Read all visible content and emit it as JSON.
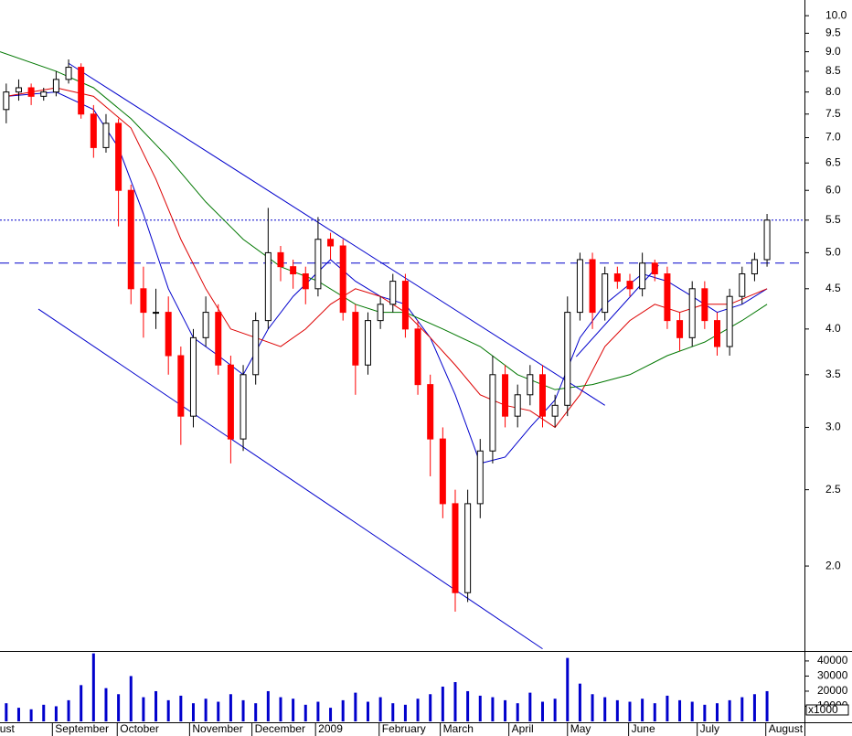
{
  "chart_data": {
    "type": "candlestick",
    "log_scale": true,
    "x": [
      0,
      1,
      2,
      3,
      4,
      5,
      6,
      7,
      8,
      9,
      10,
      11,
      12,
      13,
      14,
      15,
      16,
      17,
      18,
      19,
      20,
      21,
      22,
      23,
      24,
      25,
      26,
      27,
      28,
      29,
      30,
      31,
      32,
      33,
      34,
      35,
      36,
      37,
      38,
      39,
      40,
      41,
      42,
      43,
      44,
      45,
      46,
      47,
      48,
      49,
      50,
      51,
      52,
      53,
      54,
      55,
      56,
      57,
      58,
      59,
      60,
      61
    ],
    "open": [
      7.6,
      8.0,
      8.1,
      7.9,
      8.0,
      8.3,
      8.6,
      7.5,
      6.8,
      7.3,
      6.0,
      4.5,
      4.2,
      4.2,
      3.7,
      3.1,
      3.9,
      4.2,
      3.6,
      2.9,
      3.5,
      4.1,
      5.0,
      4.8,
      4.7,
      4.5,
      5.2,
      5.1,
      4.2,
      3.6,
      4.1,
      4.3,
      4.6,
      4.0,
      3.4,
      2.9,
      2.4,
      1.85,
      2.4,
      2.8,
      3.5,
      3.1,
      3.3,
      3.5,
      3.1,
      3.2,
      4.2,
      4.9,
      4.2,
      4.7,
      4.6,
      4.5,
      4.85,
      4.7,
      4.1,
      3.9,
      4.5,
      4.1,
      3.8,
      4.4,
      4.7,
      4.9
    ],
    "high": [
      8.2,
      8.3,
      8.2,
      8.1,
      8.5,
      8.8,
      8.7,
      7.7,
      7.5,
      7.4,
      6.1,
      4.8,
      4.5,
      4.4,
      3.8,
      4.0,
      4.4,
      4.3,
      3.7,
      3.6,
      4.2,
      5.7,
      5.1,
      4.9,
      4.8,
      5.55,
      5.3,
      5.2,
      4.3,
      4.2,
      4.4,
      4.7,
      4.7,
      4.1,
      3.5,
      3.0,
      2.5,
      2.5,
      2.9,
      3.7,
      3.6,
      3.4,
      3.6,
      3.6,
      3.3,
      4.4,
      5.0,
      5.0,
      4.8,
      4.8,
      4.7,
      5.0,
      4.9,
      4.8,
      4.2,
      4.6,
      4.6,
      4.2,
      4.5,
      4.8,
      5.0,
      5.6
    ],
    "low": [
      7.3,
      7.8,
      7.7,
      7.8,
      7.9,
      8.2,
      7.4,
      6.6,
      6.7,
      5.4,
      4.3,
      3.9,
      4.0,
      3.5,
      2.85,
      3.0,
      3.8,
      3.5,
      2.7,
      2.8,
      3.4,
      4.0,
      4.6,
      4.5,
      4.3,
      4.4,
      4.9,
      4.1,
      3.3,
      3.5,
      4.0,
      4.2,
      3.9,
      3.3,
      2.6,
      2.3,
      1.75,
      1.8,
      2.3,
      2.7,
      3.0,
      3.0,
      3.2,
      3.0,
      3.0,
      3.1,
      4.1,
      4.0,
      4.1,
      4.5,
      4.4,
      4.4,
      4.6,
      4.0,
      3.75,
      3.8,
      4.0,
      3.7,
      3.7,
      4.3,
      4.6,
      4.8
    ],
    "close": [
      8.0,
      8.1,
      7.9,
      8.0,
      8.3,
      8.6,
      7.5,
      6.8,
      7.3,
      6.0,
      4.5,
      4.2,
      4.2,
      3.7,
      3.1,
      3.9,
      4.2,
      3.6,
      2.9,
      3.5,
      4.1,
      5.0,
      4.8,
      4.7,
      4.5,
      5.2,
      5.1,
      4.2,
      3.6,
      4.1,
      4.3,
      4.6,
      4.0,
      3.4,
      2.9,
      2.4,
      1.85,
      2.4,
      2.8,
      3.5,
      3.1,
      3.3,
      3.5,
      3.1,
      3.2,
      4.2,
      4.9,
      4.2,
      4.7,
      4.6,
      4.5,
      4.85,
      4.7,
      4.1,
      3.9,
      4.5,
      4.1,
      3.8,
      4.4,
      4.7,
      4.9,
      5.5
    ],
    "volume": [
      12000,
      9000,
      8000,
      11000,
      10000,
      14000,
      24000,
      45000,
      22000,
      18000,
      30000,
      16000,
      20000,
      14000,
      17000,
      12000,
      15000,
      13000,
      18000,
      14000,
      12000,
      20000,
      16000,
      15000,
      11000,
      13000,
      9000,
      14000,
      19000,
      13000,
      16000,
      12000,
      11000,
      15000,
      18000,
      23000,
      26000,
      20000,
      17000,
      16000,
      14000,
      12000,
      19000,
      13000,
      15000,
      42000,
      25000,
      18000,
      16000,
      14000,
      13000,
      15000,
      12000,
      17000,
      14000,
      13000,
      11000,
      12000,
      14000,
      16000,
      18000,
      20000
    ],
    "up_color": "#ffffff",
    "down_color": "#ff0000",
    "volume_color": "#0000cc",
    "averages": [
      {
        "color": "#0000cc",
        "x": [
          0,
          4,
          7,
          9,
          11,
          13,
          15,
          17,
          19,
          21,
          23,
          26,
          28,
          30,
          32,
          34,
          36,
          38,
          40,
          42,
          44,
          46,
          48,
          51,
          53,
          55,
          57,
          59,
          61
        ],
        "values": [
          7.9,
          8.0,
          7.6,
          6.8,
          5.6,
          4.5,
          3.9,
          3.7,
          3.5,
          4.0,
          4.4,
          4.9,
          4.6,
          4.4,
          4.3,
          3.9,
          3.3,
          2.7,
          2.75,
          3.0,
          3.25,
          3.9,
          4.3,
          4.7,
          4.6,
          4.4,
          4.2,
          4.3,
          4.5
        ]
      },
      {
        "color": "#dd0000",
        "x": [
          0,
          4,
          7,
          10,
          12,
          14,
          16,
          18,
          20,
          22,
          24,
          26,
          28,
          30,
          32,
          34,
          36,
          38,
          40,
          42,
          44,
          46,
          48,
          50,
          52,
          54,
          56,
          58,
          61
        ],
        "values": [
          7.9,
          8.1,
          7.9,
          7.2,
          6.2,
          5.2,
          4.5,
          4.0,
          3.9,
          3.8,
          4.0,
          4.3,
          4.5,
          4.4,
          4.2,
          3.9,
          3.6,
          3.3,
          3.2,
          3.15,
          3.0,
          3.3,
          3.8,
          4.1,
          4.3,
          4.2,
          4.3,
          4.3,
          4.5
        ]
      },
      {
        "color": "#007700",
        "x": [
          -0.5,
          4,
          7,
          10,
          13,
          16,
          19,
          22,
          25,
          28,
          30,
          32,
          35,
          38,
          41,
          44,
          47,
          50,
          53,
          56,
          59,
          61
        ],
        "values": [
          9.0,
          8.5,
          8.1,
          7.4,
          6.6,
          5.8,
          5.2,
          4.8,
          4.6,
          4.3,
          4.2,
          4.2,
          4.0,
          3.8,
          3.5,
          3.35,
          3.4,
          3.5,
          3.7,
          3.85,
          4.1,
          4.3
        ]
      }
    ],
    "trendlines": [
      {
        "color": "#0000cc",
        "x": [
          5,
          48
        ],
        "values": [
          8.7,
          3.2
        ]
      },
      {
        "color": "#0000cc",
        "x": [
          2.58,
          43.0
        ],
        "values": [
          4.24,
          1.57
        ]
      },
      {
        "color": "#0000cc",
        "x": [
          45.7,
          52.3
        ],
        "values": [
          3.69,
          4.82
        ]
      }
    ],
    "hlines": [
      {
        "value": 5.5,
        "style": "dotted",
        "color": "#0000cc"
      },
      {
        "value": 4.85,
        "style": "dashed",
        "color": "#0000cc"
      }
    ],
    "xlim": [
      -0.5,
      64
    ],
    "ylim": [
      1.56,
      10.47
    ],
    "yticks": [
      {
        "value": 2,
        "label": "2.0"
      },
      2.5,
      {
        "value": 3,
        "label": "3.0"
      },
      3.5,
      {
        "value": 4,
        "label": "4.0"
      },
      4.5,
      {
        "value": 5,
        "label": "5.0"
      },
      5.5,
      {
        "value": 6,
        "label": "6.0"
      },
      6.5,
      {
        "value": 7,
        "label": "7.0"
      },
      7.5,
      {
        "value": 8,
        "label": "8.0"
      },
      8.5,
      {
        "value": 9,
        "label": "9.0"
      },
      9.5,
      {
        "value": 10,
        "label": "10.0"
      }
    ],
    "volume_ylim": [
      0,
      46000
    ],
    "volume_yticks": [
      10000,
      20000,
      30000,
      40000
    ],
    "volume_unit": "x1000",
    "months": [
      {
        "x": -2.3,
        "label": "August"
      },
      {
        "x": 3.7,
        "label": "September"
      },
      {
        "x": 8.9,
        "label": "October"
      },
      {
        "x": 14.7,
        "label": "November"
      },
      {
        "x": 19.7,
        "label": "December"
      },
      {
        "x": 24.8,
        "label": "2009"
      },
      {
        "x": 29.9,
        "label": "February"
      },
      {
        "x": 34.8,
        "label": "March"
      },
      {
        "x": 40.3,
        "label": "April"
      },
      {
        "x": 45.0,
        "label": "May"
      },
      {
        "x": 49.9,
        "label": "June"
      },
      {
        "x": 55.4,
        "label": "July"
      },
      {
        "x": 60.9,
        "label": "August"
      }
    ]
  }
}
